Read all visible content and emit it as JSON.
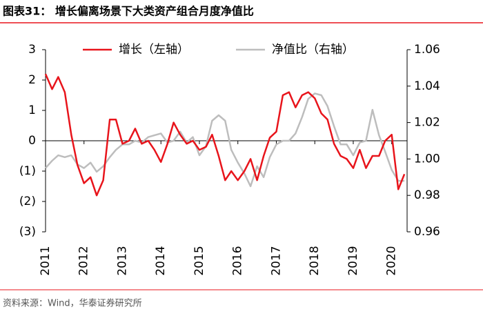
{
  "chart_data": {
    "type": "line",
    "title": "图表31：  增长偏离场景下大类资产组合月度净值比",
    "source": "资料来源：Wind，华泰证券研究所",
    "x": [
      2011,
      2011.17,
      2011.33,
      2011.5,
      2011.67,
      2011.83,
      2012,
      2012.17,
      2012.33,
      2012.5,
      2012.67,
      2012.83,
      2013,
      2013.17,
      2013.33,
      2013.5,
      2013.67,
      2013.83,
      2014,
      2014.17,
      2014.33,
      2014.5,
      2014.67,
      2014.83,
      2015,
      2015.17,
      2015.33,
      2015.5,
      2015.67,
      2015.83,
      2016,
      2016.17,
      2016.33,
      2016.5,
      2016.67,
      2016.83,
      2017,
      2017.17,
      2017.33,
      2017.5,
      2017.67,
      2017.83,
      2018,
      2018.17,
      2018.33,
      2018.5,
      2018.67,
      2018.83,
      2019,
      2019.17,
      2019.33,
      2019.5,
      2019.67,
      2019.83,
      2020,
      2020.17,
      2020.33
    ],
    "xlim": [
      2011,
      2020.4
    ],
    "xticks": [
      2011,
      2012,
      2013,
      2014,
      2015,
      2016,
      2017,
      2018,
      2019,
      2020
    ],
    "ylim": [
      -3,
      3
    ],
    "yticks": [
      3,
      2,
      1,
      0,
      {
        "value": -1,
        "label": "(1)"
      },
      {
        "value": -2,
        "label": "(2)"
      },
      {
        "value": -3,
        "label": "(3)"
      }
    ],
    "y2lim": [
      0.96,
      1.06
    ],
    "y2ticks": [
      1.06,
      1.04,
      1.02,
      {
        "value": 1,
        "label": "1.00"
      },
      0.98,
      0.96
    ],
    "series": [
      {
        "name": "增长（左轴）",
        "color": "#e8141b",
        "values": [
          2.2,
          1.7,
          2.1,
          1.6,
          0.2,
          -0.8,
          -1.4,
          -1.2,
          -1.8,
          -1.3,
          0.7,
          0.7,
          -0.1,
          0,
          0.4,
          -0.1,
          0,
          -0.3,
          -0.7,
          -0.1,
          0.6,
          0.2,
          -0.1,
          0,
          -0.3,
          -0.2,
          0.2,
          -0.5,
          -1.3,
          -1.0,
          -1.3,
          -1.0,
          -0.6,
          -1.3,
          -0.5,
          0.1,
          0.3,
          1.5,
          1.6,
          1.1,
          1.5,
          1.6,
          1.4,
          0.9,
          0.7,
          -0.1,
          -0.5,
          -0.6,
          -0.9,
          -0.3,
          -0.9,
          -0.5,
          -0.5,
          0,
          0.2,
          -1.6,
          -1.1
        ]
      },
      {
        "name": "净值比（右轴）",
        "color": "#bdbdbd",
        "axis": "y2",
        "values": [
          0.995,
          0.999,
          1.002,
          1.001,
          1.002,
          0.997,
          0.995,
          0.998,
          0.993,
          0.996,
          1.001,
          1.005,
          1.008,
          1.008,
          1.01,
          1.009,
          1.012,
          1.013,
          1.014,
          1.009,
          1.01,
          1.015,
          1.009,
          1.012,
          1.002,
          1.007,
          1.021,
          1.024,
          1.021,
          1.005,
          0.998,
          0.992,
          0.985,
          0.996,
          0.99,
          1.001,
          1.008,
          1.01,
          1.01,
          1.014,
          1.023,
          1.033,
          1.036,
          1.035,
          1.029,
          1.018,
          1.008,
          1.008,
          1.002,
          1.009,
          1.01,
          1.027,
          1.013,
          1.004,
          0.994,
          0.988,
          0.988
        ]
      }
    ]
  }
}
